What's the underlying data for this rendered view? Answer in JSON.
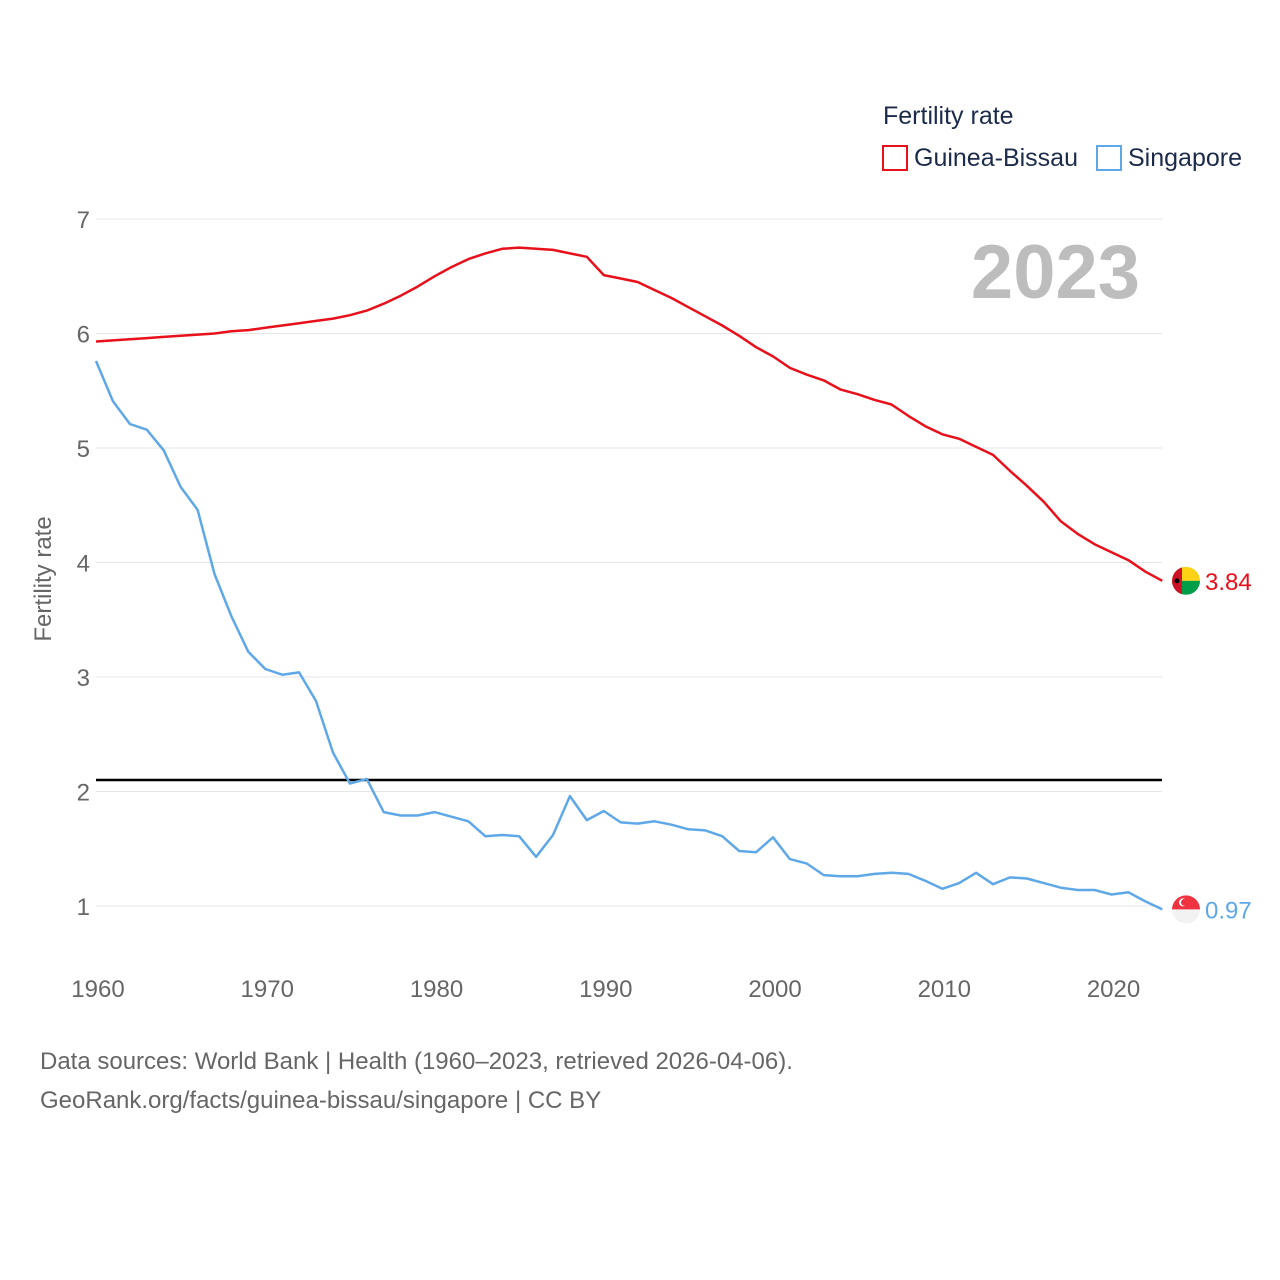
{
  "chart_data": {
    "type": "line",
    "title": "",
    "year_label": "2023",
    "xlabel": "",
    "ylabel": "Fertility rate",
    "xlim": [
      1960,
      2023
    ],
    "ylim": [
      0.5,
      7
    ],
    "x_ticks": [
      1960,
      1970,
      1980,
      1990,
      2000,
      2010,
      2020
    ],
    "y_ticks": [
      1,
      2,
      3,
      4,
      5,
      6,
      7
    ],
    "reference_line": 2.1,
    "legend": {
      "title": "Fertility rate",
      "position": "top-right"
    },
    "x": [
      1960,
      1961,
      1962,
      1963,
      1964,
      1965,
      1966,
      1967,
      1968,
      1969,
      1970,
      1971,
      1972,
      1973,
      1974,
      1975,
      1976,
      1977,
      1978,
      1979,
      1980,
      1981,
      1982,
      1983,
      1984,
      1985,
      1986,
      1987,
      1988,
      1989,
      1990,
      1991,
      1992,
      1993,
      1994,
      1995,
      1996,
      1997,
      1998,
      1999,
      2000,
      2001,
      2002,
      2003,
      2004,
      2005,
      2006,
      2007,
      2008,
      2009,
      2010,
      2011,
      2012,
      2013,
      2014,
      2015,
      2016,
      2017,
      2018,
      2019,
      2020,
      2021,
      2022,
      2023
    ],
    "series": [
      {
        "name": "Guinea-Bissau",
        "color": "#e8101a",
        "end_label": "3.84",
        "values": [
          5.93,
          5.94,
          5.95,
          5.96,
          5.97,
          5.98,
          5.99,
          6.0,
          6.02,
          6.03,
          6.05,
          6.07,
          6.09,
          6.11,
          6.13,
          6.16,
          6.2,
          6.26,
          6.33,
          6.41,
          6.5,
          6.58,
          6.65,
          6.7,
          6.74,
          6.75,
          6.74,
          6.73,
          6.7,
          6.67,
          6.51,
          6.48,
          6.45,
          6.38,
          6.31,
          6.23,
          6.15,
          6.07,
          5.98,
          5.88,
          5.8,
          5.7,
          5.64,
          5.59,
          5.51,
          5.47,
          5.42,
          5.38,
          5.28,
          5.19,
          5.12,
          5.08,
          5.01,
          4.94,
          4.8,
          4.67,
          4.53,
          4.36,
          4.25,
          4.16,
          4.09,
          4.02,
          3.92,
          3.84
        ]
      },
      {
        "name": "Singapore",
        "color": "#5fa8e8",
        "end_label": "0.97",
        "values": [
          5.76,
          5.41,
          5.21,
          5.16,
          4.98,
          4.66,
          4.46,
          3.9,
          3.53,
          3.22,
          3.07,
          3.02,
          3.04,
          2.79,
          2.34,
          2.07,
          2.11,
          1.82,
          1.79,
          1.79,
          1.82,
          1.78,
          1.74,
          1.61,
          1.62,
          1.61,
          1.43,
          1.62,
          1.96,
          1.75,
          1.83,
          1.73,
          1.72,
          1.74,
          1.71,
          1.67,
          1.66,
          1.61,
          1.48,
          1.47,
          1.6,
          1.41,
          1.37,
          1.27,
          1.26,
          1.26,
          1.28,
          1.29,
          1.28,
          1.22,
          1.15,
          1.2,
          1.29,
          1.19,
          1.25,
          1.24,
          1.2,
          1.16,
          1.14,
          1.14,
          1.1,
          1.12,
          1.04,
          0.97
        ]
      }
    ]
  },
  "footer": {
    "line1": "Data sources: World Bank | Health (1960–2023, retrieved 2026-04-06).",
    "line2": "GeoRank.org/facts/guinea-bissau/singapore | CC BY"
  }
}
